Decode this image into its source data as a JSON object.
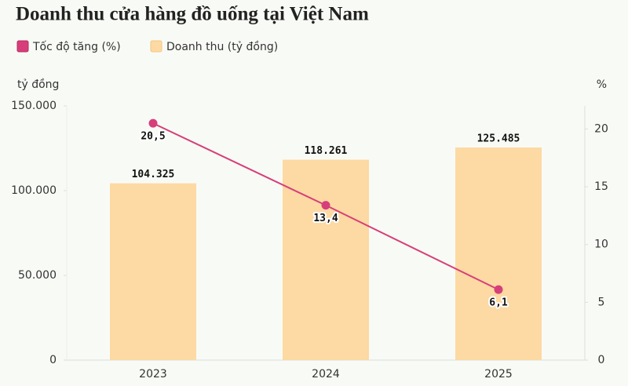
{
  "chart_data": {
    "type": "combo",
    "title": "Doanh thu cửa hàng đồ uống tại Việt Nam",
    "categories": [
      "2023",
      "2024",
      "2025"
    ],
    "y_label": "tỷ đồng",
    "y2_label": "%",
    "series": [
      {
        "name": "Tốc độ tăng (%)",
        "type": "line",
        "axis": "y2",
        "color": "#d63f7a",
        "values": [
          20.5,
          13.4,
          6.1
        ],
        "value_labels": [
          "20,5",
          "13,4",
          "6,1"
        ]
      },
      {
        "name": "Doanh thu (tỷ đồng)",
        "type": "bar",
        "color": "#fdd9a3",
        "values": [
          104325,
          118261,
          125485
        ],
        "value_labels": [
          "104.325",
          "118.261",
          "125.485"
        ]
      }
    ],
    "ylim": [
      0,
      150000
    ],
    "yticks": [
      0,
      {
        "value": 50000,
        "label": "50.000"
      },
      {
        "value": 100000,
        "label": "100.000"
      },
      {
        "value": 150000,
        "label": "150.000"
      }
    ],
    "y2lim": [
      0,
      22
    ],
    "y2ticks": [
      0,
      5,
      10,
      15,
      20
    ],
    "grid": false
  }
}
